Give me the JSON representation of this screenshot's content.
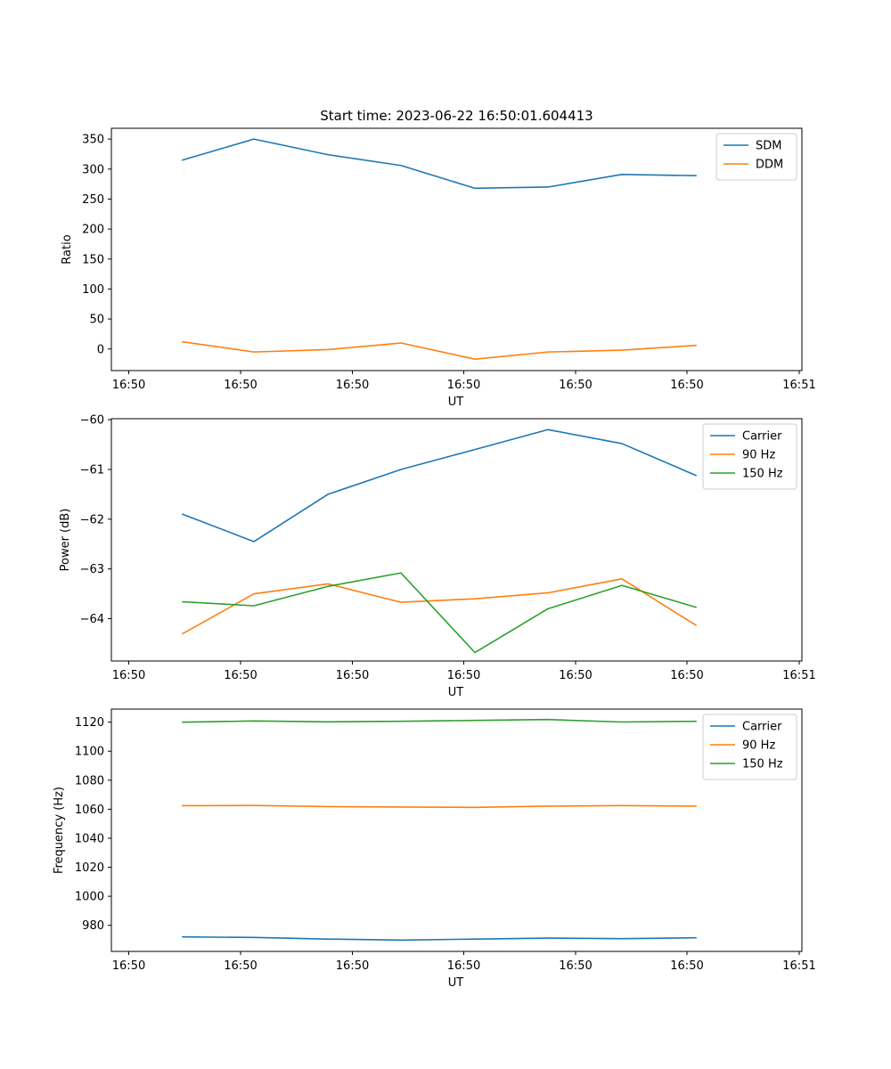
{
  "chart_data": [
    {
      "type": "line",
      "title": "Start time: 2023-06-22 16:50:01.604413",
      "xlabel": "UT",
      "ylabel": "Ratio",
      "x_tick_labels": [
        "16:50",
        "16:50",
        "16:50",
        "16:50",
        "16:50",
        "16:50",
        "16:51"
      ],
      "ylim": [
        -36,
        368
      ],
      "y_ticks": [
        0,
        50,
        100,
        150,
        200,
        250,
        300,
        350
      ],
      "y_tick_labels": [
        "0",
        "50",
        "100",
        "150",
        "200",
        "250",
        "300",
        "350"
      ],
      "legend": "top-right",
      "grid": false,
      "series": [
        {
          "name": "SDM",
          "color": "#1f77b4",
          "values": [
            315,
            350,
            324,
            306,
            268,
            270,
            291,
            289
          ]
        },
        {
          "name": "DDM",
          "color": "#ff7f0e",
          "values": [
            12,
            -5,
            -1,
            10,
            -17,
            -5,
            -2,
            6
          ]
        }
      ]
    },
    {
      "type": "line",
      "title": "",
      "xlabel": "UT",
      "ylabel": "Power (dB)",
      "x_tick_labels": [
        "16:50",
        "16:50",
        "16:50",
        "16:50",
        "16:50",
        "16:50",
        "16:51"
      ],
      "ylim": [
        -64.85,
        -59.98
      ],
      "y_ticks": [
        -64,
        -63,
        -62,
        -61,
        -60
      ],
      "y_tick_labels": [
        "−64",
        "−63",
        "−62",
        "−61",
        "−60"
      ],
      "legend": "top-right",
      "grid": false,
      "series": [
        {
          "name": "Carrier",
          "color": "#1f77b4",
          "values": [
            -61.9,
            -62.45,
            -61.5,
            -61.0,
            -60.6,
            -60.2,
            -60.48,
            -61.12
          ]
        },
        {
          "name": "90 Hz",
          "color": "#ff7f0e",
          "values": [
            -64.3,
            -63.5,
            -63.3,
            -63.67,
            -63.6,
            -63.48,
            -63.2,
            -64.13
          ]
        },
        {
          "name": "150 Hz",
          "color": "#2ca02c",
          "values": [
            -63.66,
            -63.74,
            -63.35,
            -63.08,
            -64.68,
            -63.8,
            -63.33,
            -63.77
          ]
        }
      ]
    },
    {
      "type": "line",
      "title": "",
      "xlabel": "UT",
      "ylabel": "Frequency (Hz)",
      "x_tick_labels": [
        "16:50",
        "16:50",
        "16:50",
        "16:50",
        "16:50",
        "16:50",
        "16:51"
      ],
      "ylim": [
        962,
        1129
      ],
      "y_ticks": [
        980,
        1000,
        1020,
        1040,
        1060,
        1080,
        1100,
        1120
      ],
      "y_tick_labels": [
        "980",
        "1000",
        "1020",
        "1040",
        "1060",
        "1080",
        "1100",
        "1120"
      ],
      "legend": "top-right",
      "grid": false,
      "series": [
        {
          "name": "Carrier",
          "color": "#1f77b4",
          "values": [
            972,
            971.6,
            970.5,
            969.8,
            970.5,
            971.2,
            970.8,
            971.4
          ]
        },
        {
          "name": "90 Hz",
          "color": "#ff7f0e",
          "values": [
            1062.4,
            1062.6,
            1061.8,
            1061.5,
            1061.3,
            1062.1,
            1062.5,
            1062.1
          ]
        },
        {
          "name": "150 Hz",
          "color": "#2ca02c",
          "values": [
            1120,
            1120.8,
            1120.2,
            1120.6,
            1121.2,
            1121.8,
            1120.1,
            1120.6
          ]
        }
      ]
    }
  ]
}
